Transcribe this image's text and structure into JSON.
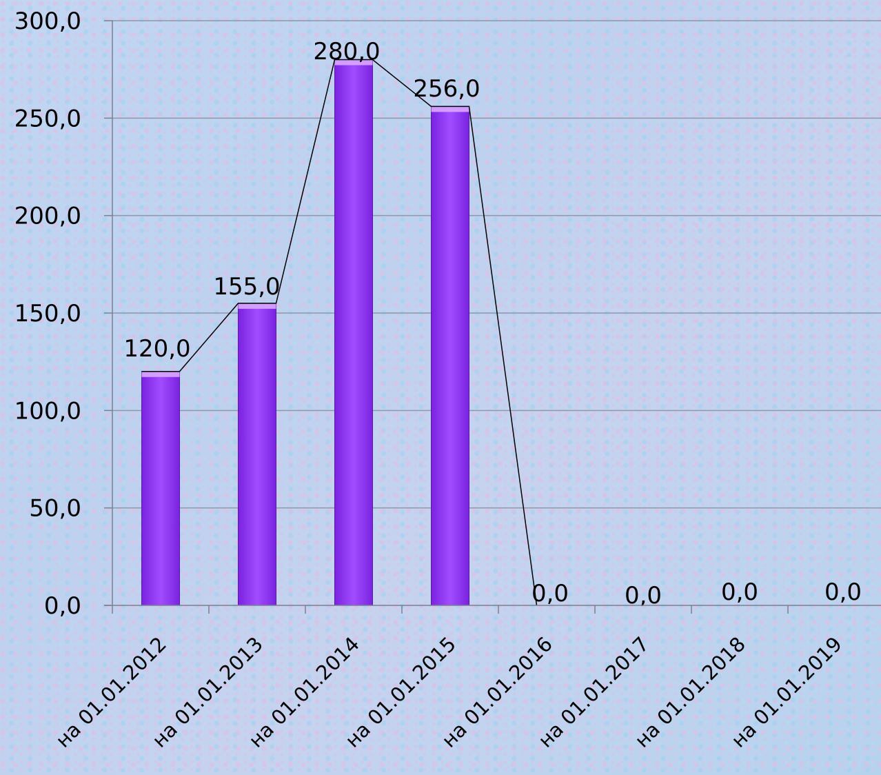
{
  "chart_data": {
    "type": "bar",
    "categories": [
      "на 01.01.2012",
      "на 01.01.2013",
      "на 01.01.2014",
      "на 01.01.2015",
      "на 01.01.2016",
      "на 01.01.2017",
      "на 01.01.2018",
      "на 01.01.2019"
    ],
    "values": [
      120.0,
      155.0,
      280.0,
      256.0,
      0.0,
      0.0,
      0.0,
      0.0
    ],
    "data_labels": [
      "120,0",
      "155,0",
      "280,0",
      "256,0",
      "0,0",
      "0,0",
      "0,0",
      "0,0"
    ],
    "yticks": [
      "0,0",
      "50,0",
      "100,0",
      "150,0",
      "200,0",
      "250,0",
      "300,0"
    ],
    "ylim": [
      0,
      300
    ],
    "ystep": 50,
    "grid": true,
    "trend_line": true,
    "colors": {
      "bar": "#9a3cff",
      "bar_top": "#d9a8ff",
      "grid": "#8e96a8",
      "axis": "#7a8090",
      "line": "#000000"
    }
  }
}
